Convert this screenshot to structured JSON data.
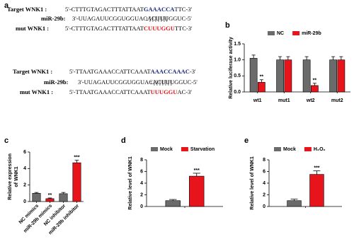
{
  "sequences": {
    "label": "a",
    "blocks": [
      {
        "target": {
          "name": "Target WNK1 :",
          "seq": [
            "5'-CTTTGTAGACTTTATTAAT",
            "GAAACCA",
            "TTC-3'"
          ]
        },
        "match": ": | | | | | | |",
        "mirna": {
          "name": "miR-29b:",
          "seq": "3'-UUAGAUUCGGUGGUACACUUUGGUC-5'"
        },
        "mut": {
          "name": "mut WNK1 :",
          "seq": [
            "5'-CTTTGTAGACTTTATTAAT",
            "CUUUGGU",
            "TTC-3'"
          ]
        }
      },
      {
        "target": {
          "name": "Target WNK1 :",
          "seq": [
            "5'-TTAATGAAACCATTCAAAT",
            "AAACCAAAC",
            "-3'"
          ]
        },
        "match": ": | | | | | | |",
        "mirna": {
          "name": "miR-29b:",
          "seq": "3'-UUAGAUUCGGUGGUACACUUUGGUC-5'"
        },
        "mut": {
          "name": "mut WNK1 :",
          "seq": [
            "5'-TTAATGAAACCATTCAAAT",
            "UUUGGU",
            "AC-3'"
          ]
        }
      }
    ]
  },
  "chart_data": [
    {
      "type": "grouped-bar",
      "label": "b",
      "ylabel": "Relative luciferase activity",
      "categories": [
        "wt1",
        "mut1",
        "wt2",
        "mut2"
      ],
      "series": [
        {
          "name": "NC",
          "color": "#6b6b6b",
          "values": [
            1.05,
            1.0,
            1.0,
            1.0
          ],
          "errors": [
            0.1,
            0.1,
            0.1,
            0.1
          ]
        },
        {
          "name": "miR-29b",
          "color": "#e8141b",
          "values": [
            0.3,
            1.0,
            0.2,
            1.0
          ],
          "errors": [
            0.08,
            0.1,
            0.07,
            0.1
          ],
          "significance": [
            "**",
            null,
            "**",
            null
          ]
        }
      ],
      "ylim": [
        0,
        1.5
      ],
      "yticks": [
        {
          "value": 0,
          "label": "0.0"
        },
        {
          "value": 0.5,
          "label": "0.5"
        },
        {
          "value": 1,
          "label": "1.0"
        },
        {
          "value": 1.5,
          "label": "1.5"
        }
      ]
    },
    {
      "type": "bar",
      "label": "c",
      "ylabel": [
        "Relative expression",
        "of WNK1"
      ],
      "categories": [
        "NC mimics",
        "miR-29b mimics",
        "NC inhibitor",
        "miR-29b inhibitor"
      ],
      "values": [
        1.0,
        0.35,
        0.95,
        4.7
      ],
      "errors": [
        0.1,
        0.08,
        0.15,
        0.3
      ],
      "colors": [
        "#6b6b6b",
        "#e8141b",
        "#6b6b6b",
        "#e8141b"
      ],
      "significance": [
        null,
        "**",
        null,
        "***"
      ],
      "ylim": [
        0,
        6
      ],
      "yticks": [
        0,
        2,
        4,
        6
      ]
    },
    {
      "type": "grouped-bar",
      "label": "d",
      "ylabel": "Relative level of WNK1",
      "categories": [
        null
      ],
      "series": [
        {
          "name": "Mock",
          "color": "#6b6b6b",
          "values": [
            1.0
          ],
          "errors": [
            0.2
          ]
        },
        {
          "name": "Starvation",
          "color": "#e8141b",
          "values": [
            5.2
          ],
          "errors": [
            0.5
          ],
          "significance": [
            "***"
          ]
        }
      ],
      "ylim": [
        0,
        8
      ],
      "yticks": [
        0,
        2,
        4,
        6,
        8
      ]
    },
    {
      "type": "grouped-bar",
      "label": "e",
      "ylabel": "Relative level of WNK1",
      "categories": [
        null
      ],
      "series": [
        {
          "name": "Mock",
          "color": "#6b6b6b",
          "values": [
            1.0
          ],
          "errors": [
            0.25
          ]
        },
        {
          "name": "H₂O₂",
          "color": "#e8141b",
          "values": [
            5.5
          ],
          "errors": [
            0.6
          ],
          "significance": [
            "***"
          ]
        }
      ],
      "ylim": [
        0,
        8
      ],
      "yticks": [
        0,
        2,
        4,
        6,
        8
      ]
    }
  ]
}
